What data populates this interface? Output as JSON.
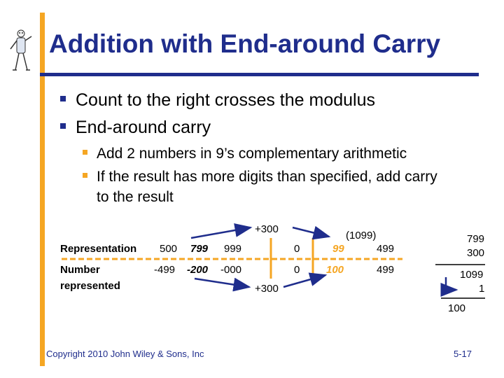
{
  "title": "Addition with End-around Carry",
  "bullets": [
    "Count to the right crosses the modulus",
    "End-around carry"
  ],
  "sub_bullets": [
    "Add 2 numbers in 9’s complementary arithmetic",
    "If the result has more digits than specified, add carry",
    "to the result"
  ],
  "diagram": {
    "row_labels": {
      "representation": "Representation",
      "number_line1": "Number",
      "number_line2": "represented"
    },
    "top_row": {
      "v500": "500",
      "v799": "799",
      "v999": "999",
      "v0": "0",
      "v99": "99",
      "v499": "499"
    },
    "bottom_row": {
      "vm499": "-499",
      "vm200": "-200",
      "vm000": "-000",
      "v0": "0",
      "v100": "100",
      "v499": "499"
    },
    "plus_top": "+300",
    "plus_bottom": "+300",
    "carry_note": "(1099)"
  },
  "calculation": {
    "a": "799",
    "b": "300",
    "sum": "1099",
    "carry": "1",
    "result": "100"
  },
  "footer": {
    "copyright": "Copyright 2010 John Wiley & Sons, Inc",
    "slide_number": "5-17"
  },
  "colors": {
    "accent": "#f5a623",
    "title": "#1f2d8c",
    "arrow": "#1f2d8c"
  }
}
